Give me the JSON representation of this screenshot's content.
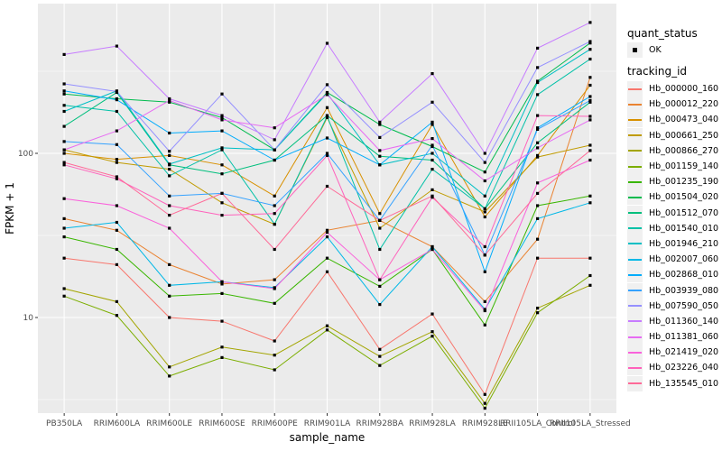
{
  "figure": {
    "panel_background": "#EBEBEB",
    "grid_color": "#FFFFFF",
    "axis_text_color": "#4D4D4D",
    "axis_title_color": "#000000",
    "marker_color": "#000000",
    "legend_key_background": "#F0F0F0"
  },
  "legend": {
    "quant_status_title": "quant_status",
    "quant_status_ok_label": "OK",
    "quant_status_marker": "black-square-point",
    "tracking_title": "tracking_id"
  },
  "chart_data": {
    "type": "line",
    "title": "",
    "xlabel": "sample_name",
    "ylabel": "FPKM + 1",
    "y_scale": "log10",
    "ylim": [
      2.6,
      800
    ],
    "y_major_ticks": [
      10,
      100
    ],
    "y_minor_ticks": [
      3.1623,
      31.623,
      316.23
    ],
    "grid": true,
    "legend_position": "right",
    "marker": "small black point (quant_status = OK)",
    "categories": [
      "PB350LA",
      "RRIM600LA",
      "RRIM600LE",
      "RRIM600SE",
      "RRIM600PE",
      "RRIM901LA",
      "RRIM928BA",
      "RRIM928LA",
      "RRIM928LE",
      "RRII105LA_Control",
      "RRII105LA_Stressed"
    ],
    "series": [
      {
        "name": "Hb_000000_160",
        "color": "#F8766D",
        "values": [
          23,
          21,
          10,
          9.5,
          7.2,
          19,
          6.4,
          10.5,
          3.4,
          23,
          23
        ]
      },
      {
        "name": "Hb_000012_220",
        "color": "#EA8331",
        "values": [
          40,
          34,
          21,
          16,
          17,
          34,
          39,
          27,
          12.5,
          30,
          290
        ]
      },
      {
        "name": "Hb_000473_040",
        "color": "#D89000",
        "values": [
          100,
          92,
          97,
          85,
          55,
          190,
          43,
          150,
          41,
          97,
          260
        ]
      },
      {
        "name": "Hb_000661_250",
        "color": "#C09B00",
        "values": [
          105,
          88,
          80,
          50,
          37,
          165,
          35,
          60,
          44,
          95,
          112
        ]
      },
      {
        "name": "Hb_000866_270",
        "color": "#A3A500",
        "values": [
          15,
          12.5,
          5.0,
          6.6,
          5.9,
          8.9,
          5.8,
          8.2,
          3.0,
          11.4,
          15.7
        ]
      },
      {
        "name": "Hb_001159_140",
        "color": "#7CAE00",
        "values": [
          13.5,
          10.3,
          4.4,
          5.7,
          4.8,
          8.4,
          5.1,
          7.7,
          2.8,
          10.7,
          18
        ]
      },
      {
        "name": "Hb_001235_190",
        "color": "#39B600",
        "values": [
          31,
          26,
          13.5,
          14,
          12.2,
          23,
          15.5,
          26,
          9.0,
          48,
          55
        ]
      },
      {
        "name": "Hb_001504_020",
        "color": "#00BB4E",
        "values": [
          230,
          215,
          205,
          165,
          105,
          235,
          150,
          110,
          77,
          275,
          470
        ]
      },
      {
        "name": "Hb_001512_070",
        "color": "#00BF7D",
        "values": [
          146,
          235,
          85,
          75,
          91,
          170,
          96,
          91,
          46,
          116,
          205
        ]
      },
      {
        "name": "Hb_001540_010",
        "color": "#00C1A7",
        "values": [
          196,
          180,
          73,
          105,
          37,
          168,
          26,
          80,
          46,
          228,
          375
        ]
      },
      {
        "name": "Hb_001946_210",
        "color": "#00BFC4",
        "values": [
          180,
          240,
          86,
          108,
          105,
          232,
          85,
          100,
          55,
          270,
          430
        ]
      },
      {
        "name": "Hb_002007_060",
        "color": "#00B8E7",
        "values": [
          35,
          38,
          15.7,
          16.5,
          15.2,
          31,
          12,
          27,
          11.2,
          40,
          50
        ]
      },
      {
        "name": "Hb_002868_010",
        "color": "#00ACFC",
        "values": [
          240,
          212,
          133,
          137,
          91,
          124,
          85,
          155,
          19,
          143,
          222
        ]
      },
      {
        "name": "Hb_003939_080",
        "color": "#35A2FF",
        "values": [
          118,
          113,
          55,
          57,
          48,
          100,
          39,
          112,
          24,
          140,
          210
        ]
      },
      {
        "name": "Hb_007590_050",
        "color": "#9590FF",
        "values": [
          265,
          238,
          103,
          230,
          105,
          262,
          125,
          205,
          88,
          333,
          480
        ]
      },
      {
        "name": "Hb_011360_140",
        "color": "#C77CFF",
        "values": [
          400,
          450,
          215,
          170,
          121,
          468,
          155,
          306,
          100,
          437,
          627
        ]
      },
      {
        "name": "Hb_011381_060",
        "color": "#E76BF3",
        "values": [
          105,
          137,
          210,
          160,
          143,
          228,
          104,
          123,
          68,
          108,
          160
        ]
      },
      {
        "name": "Hb_021419_020",
        "color": "#FA62DB",
        "values": [
          53,
          48,
          35,
          16.5,
          15,
          33,
          17,
          26,
          11,
          66,
          91
        ]
      },
      {
        "name": "Hb_023226_040",
        "color": "#FF62BC",
        "values": [
          85,
          70,
          48,
          42,
          43,
          97,
          17,
          54,
          27,
          170,
          168
        ]
      },
      {
        "name": "Hb_135545_010",
        "color": "#FF6A98",
        "values": [
          88,
          72,
          42,
          57,
          26,
          63,
          39,
          55,
          24,
          57,
          104
        ]
      }
    ]
  }
}
